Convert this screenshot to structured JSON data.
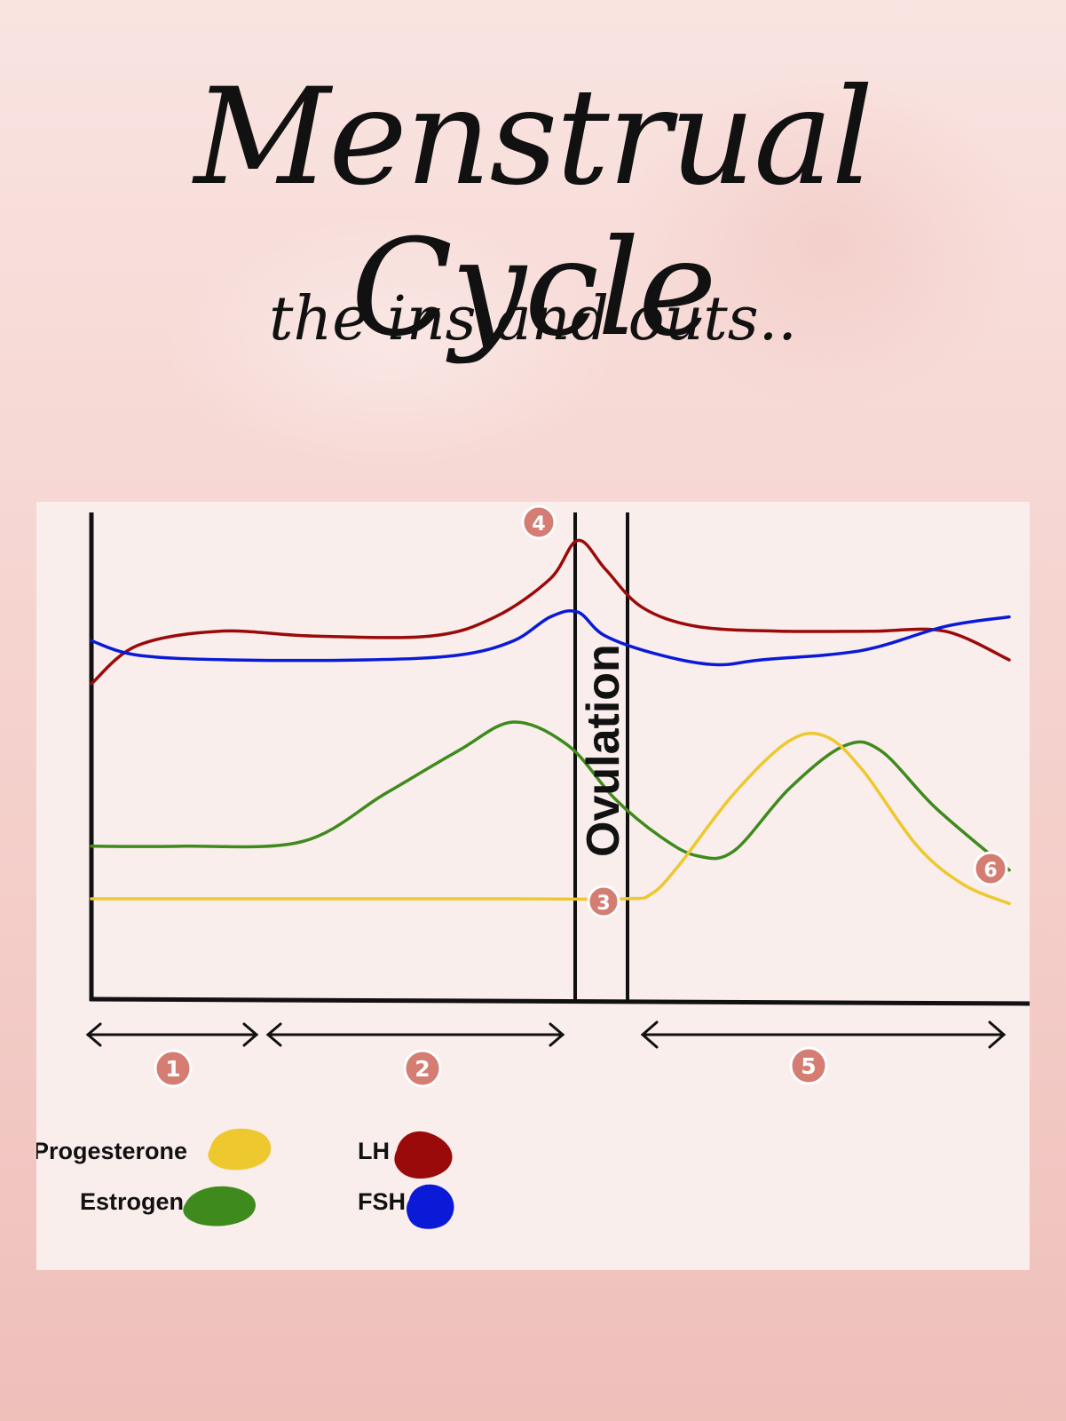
{
  "title": "Menstrual Cycle",
  "subtitle": "the ins and outs..",
  "chart_data": {
    "type": "line",
    "x_range": [
      0,
      100
    ],
    "y_range": [
      0,
      100
    ],
    "grid": false,
    "series": [
      {
        "name": "LH",
        "color": "#9b0a0a",
        "points": [
          [
            0,
            66
          ],
          [
            5,
            74
          ],
          [
            14,
            77
          ],
          [
            24,
            76
          ],
          [
            37,
            76
          ],
          [
            44,
            80
          ],
          [
            50,
            88
          ],
          [
            53,
            96
          ],
          [
            56,
            90
          ],
          [
            60,
            82
          ],
          [
            66,
            78
          ],
          [
            75,
            77
          ],
          [
            85,
            77
          ],
          [
            93,
            77
          ],
          [
            100,
            71
          ]
        ]
      },
      {
        "name": "FSH",
        "color": "#0a1ad6",
        "points": [
          [
            0,
            75
          ],
          [
            5,
            72
          ],
          [
            15,
            71
          ],
          [
            30,
            71
          ],
          [
            40,
            72
          ],
          [
            46,
            75
          ],
          [
            50,
            80
          ],
          [
            53,
            81
          ],
          [
            56,
            76
          ],
          [
            62,
            72
          ],
          [
            68,
            70
          ],
          [
            73,
            71
          ],
          [
            84,
            73
          ],
          [
            93,
            78
          ],
          [
            100,
            80
          ]
        ]
      },
      {
        "name": "Estrogen",
        "color": "#3f8a1d",
        "points": [
          [
            0,
            32
          ],
          [
            10,
            32
          ],
          [
            23,
            33
          ],
          [
            32,
            43
          ],
          [
            40,
            52
          ],
          [
            46,
            58
          ],
          [
            52,
            53
          ],
          [
            57,
            42
          ],
          [
            62,
            34
          ],
          [
            66,
            30
          ],
          [
            70,
            31
          ],
          [
            76,
            44
          ],
          [
            82,
            53
          ],
          [
            86,
            52
          ],
          [
            92,
            40
          ],
          [
            100,
            27
          ]
        ]
      },
      {
        "name": "Progesterone",
        "color": "#edc82f",
        "points": [
          [
            0,
            21
          ],
          [
            25,
            21
          ],
          [
            45,
            21
          ],
          [
            58,
            21
          ],
          [
            61,
            22
          ],
          [
            64,
            28
          ],
          [
            70,
            43
          ],
          [
            76,
            54
          ],
          [
            80,
            55
          ],
          [
            84,
            48
          ],
          [
            90,
            32
          ],
          [
            95,
            24
          ],
          [
            100,
            20
          ]
        ]
      }
    ],
    "annotations": [
      {
        "text": "Ovulation"
      },
      {
        "label": "1"
      },
      {
        "label": "2"
      },
      {
        "label": "3"
      },
      {
        "label": "4"
      },
      {
        "label": "5"
      },
      {
        "label": "6"
      }
    ],
    "legend": {
      "placement": "bottom-left",
      "items": [
        {
          "label": "Progesterone",
          "color": "#edc82f"
        },
        {
          "label": "Estrogen",
          "color": "#3f8a1d"
        },
        {
          "label": "LH",
          "color": "#9b0a0a"
        },
        {
          "label": "FSH",
          "color": "#0a1ad6"
        }
      ]
    }
  }
}
